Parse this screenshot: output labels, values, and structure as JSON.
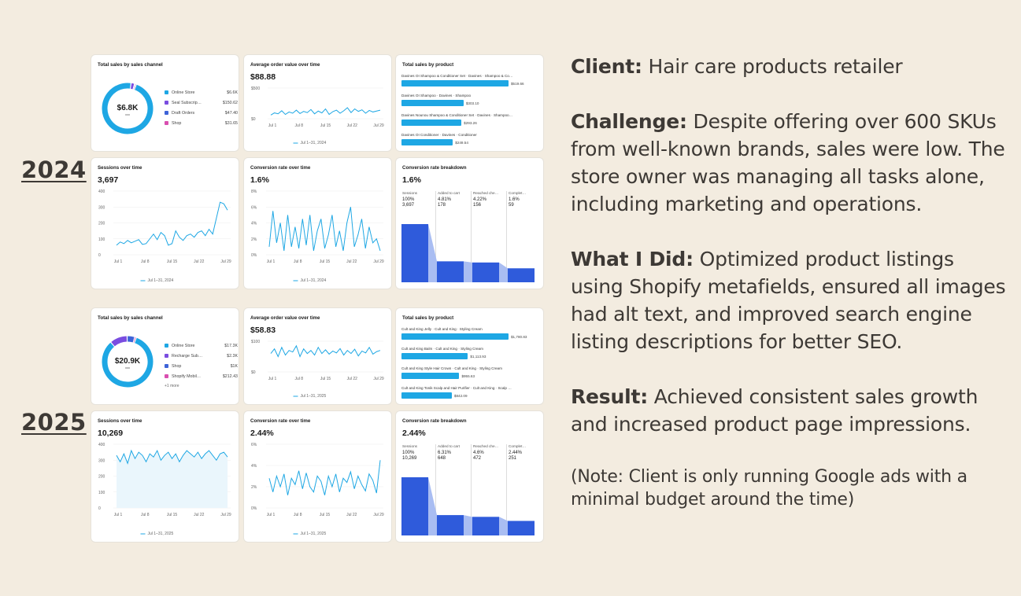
{
  "years": {
    "y1": "2024",
    "y2": "2025"
  },
  "colors": {
    "background": "#f3ece0",
    "accent_blue": "#1ea7e4",
    "funnel_blue": "#2f5bdb",
    "text": "#3d3935"
  },
  "dashboards": {
    "d2024": {
      "sales_channel": {
        "title": "Total sales by sales channel",
        "total": "$6.8K",
        "items": [
          {
            "name": "Online Store",
            "value": "$6.6K",
            "color": "#1ea7e4"
          },
          {
            "name": "Seal Subscrip…",
            "value": "$150.62",
            "color": "#7a4de0"
          },
          {
            "name": "Draft Orders",
            "value": "$47.40",
            "color": "#3e63d8"
          },
          {
            "name": "Shop",
            "value": "$31.65",
            "color": "#d94fb0"
          }
        ],
        "more": ""
      },
      "aov": {
        "title": "Average order value over time",
        "value": "$88.88",
        "y_ticks": [
          "$500",
          "$0"
        ],
        "x_ticks": [
          "Jul 1",
          "Jul 8",
          "Jul 15",
          "Jul 22",
          "Jul 29"
        ],
        "legend": "Jul 1–31, 2024"
      },
      "products": {
        "title": "Total sales by product",
        "items": [
          {
            "name": "Davines OI Shampoo & Conditioner Set · Davines · Shampoo & Co…",
            "value": "$519.66",
            "share": 1.0
          },
          {
            "name": "Davines OI Shampoo · Davines · Shampoo",
            "value": "$303.10",
            "share": 0.58
          },
          {
            "name": "Davines Nounou Shampoo & Conditioner Set · Davines · Shampoo…",
            "value": "$293.26",
            "share": 0.56
          },
          {
            "name": "Davines OI Conditioner · Davines · Conditioner",
            "value": "$249.54",
            "share": 0.48
          }
        ]
      },
      "sessions": {
        "title": "Sessions over time",
        "value": "3,697",
        "y_ticks": [
          "400",
          "300",
          "200",
          "100",
          "0"
        ],
        "x_ticks": [
          "Jul 1",
          "Jul 8",
          "Jul 15",
          "Jul 22",
          "Jul 29"
        ],
        "legend": "Jul 1–31, 2024"
      },
      "conversion": {
        "title": "Conversion rate over time",
        "value": "1.6%",
        "y_ticks": [
          "8%",
          "6%",
          "4%",
          "2%",
          "0%"
        ],
        "x_ticks": [
          "Jul 1",
          "Jul 8",
          "Jul 15",
          "Jul 22",
          "Jul 29"
        ],
        "legend": "Jul 1–31, 2024"
      },
      "funnel": {
        "title": "Conversion rate breakdown",
        "value": "1.6%",
        "stages": [
          {
            "label": "Sessions",
            "pct": "100%",
            "count": "3,697",
            "share": 1.0
          },
          {
            "label": "Added to cart",
            "pct": "4.81%",
            "count": "178",
            "share": 0.36
          },
          {
            "label": "Reached che…",
            "pct": "4.22%",
            "count": "156",
            "share": 0.34
          },
          {
            "label": "Complet…",
            "pct": "1.6%",
            "count": "59",
            "share": 0.24
          }
        ]
      }
    },
    "d2025": {
      "sales_channel": {
        "title": "Total sales by sales channel",
        "total": "$20.9K",
        "items": [
          {
            "name": "Online Store",
            "value": "$17.3K",
            "color": "#1ea7e4"
          },
          {
            "name": "Recharge Sub…",
            "value": "$2.3K",
            "color": "#7a4de0"
          },
          {
            "name": "Shop",
            "value": "$1K",
            "color": "#3e63d8"
          },
          {
            "name": "Shopify Mobil…",
            "value": "$212.43",
            "color": "#d94fb0"
          }
        ],
        "more": "+1 more"
      },
      "aov": {
        "title": "Average order value over time",
        "value": "$58.83",
        "y_ticks": [
          "$100",
          "$0"
        ],
        "x_ticks": [
          "Jul 1",
          "Jul 8",
          "Jul 15",
          "Jul 22",
          "Jul 29"
        ],
        "legend": "Jul 1–31, 2025"
      },
      "products": {
        "title": "Total sales by product",
        "items": [
          {
            "name": "Cult and King Jelly · Cult and King · Styling Cream",
            "value": "$1,780.83",
            "share": 1.0
          },
          {
            "name": "Cult and King Balm · Cult and King · Styling Cream",
            "value": "$1,113.93",
            "share": 0.62
          },
          {
            "name": "Cult and King Style Hair Crown · Cult and King · Styling Cream",
            "value": "$955.63",
            "share": 0.54
          },
          {
            "name": "Cult and King Tonik Scalp and Hair Purifier · Cult and King · Scalp …",
            "value": "$842.09",
            "share": 0.47
          }
        ]
      },
      "sessions": {
        "title": "Sessions over time",
        "value": "10,269",
        "y_ticks": [
          "400",
          "300",
          "200",
          "100",
          "0"
        ],
        "x_ticks": [
          "Jul 1",
          "Jul 8",
          "Jul 15",
          "Jul 22",
          "Jul 29"
        ],
        "legend": "Jul 1–31, 2025"
      },
      "conversion": {
        "title": "Conversion rate over time",
        "value": "2.44%",
        "y_ticks": [
          "6%",
          "4%",
          "2%",
          "0%"
        ],
        "x_ticks": [
          "Jul 1",
          "Jul 8",
          "Jul 15",
          "Jul 22",
          "Jul 29"
        ],
        "legend": "Jul 1–31, 2025"
      },
      "funnel": {
        "title": "Conversion rate breakdown",
        "value": "2.44%",
        "stages": [
          {
            "label": "Sessions",
            "pct": "100%",
            "count": "10,269",
            "share": 1.0
          },
          {
            "label": "Added to cart",
            "pct": "6.31%",
            "count": "648",
            "share": 0.35
          },
          {
            "label": "Reached che…",
            "pct": "4.6%",
            "count": "472",
            "share": 0.32
          },
          {
            "label": "Complet…",
            "pct": "2.44%",
            "count": "251",
            "share": 0.25
          }
        ]
      }
    }
  },
  "chart_data": [
    {
      "type": "line",
      "title": "Sessions over time",
      "year": "2024",
      "x": [
        "Jul 1",
        "Jul 2",
        "Jul 3",
        "Jul 4",
        "Jul 5",
        "Jul 6",
        "Jul 7",
        "Jul 8",
        "Jul 9",
        "Jul 10",
        "Jul 11",
        "Jul 12",
        "Jul 13",
        "Jul 14",
        "Jul 15",
        "Jul 16",
        "Jul 17",
        "Jul 18",
        "Jul 19",
        "Jul 20",
        "Jul 21",
        "Jul 22",
        "Jul 23",
        "Jul 24",
        "Jul 25",
        "Jul 26",
        "Jul 27",
        "Jul 28",
        "Jul 29",
        "Jul 30",
        "Jul 31"
      ],
      "values": [
        60,
        80,
        70,
        90,
        75,
        85,
        95,
        65,
        70,
        100,
        130,
        95,
        140,
        120,
        60,
        70,
        150,
        110,
        90,
        120,
        130,
        110,
        140,
        150,
        120,
        160,
        130,
        230,
        330,
        320,
        280
      ],
      "ylim": [
        0,
        400
      ]
    },
    {
      "type": "line",
      "title": "Conversion rate over time",
      "year": "2024",
      "values": [
        1.0,
        5.5,
        1.5,
        4.0,
        0.5,
        5.0,
        1.0,
        3.5,
        0.8,
        4.5,
        1.2,
        5.0,
        0.5,
        3.0,
        4.5,
        0.8,
        2.5,
        5.0,
        1.0,
        3.0,
        0.5,
        4.0,
        6.0,
        1.0,
        2.5,
        4.5,
        0.8,
        3.5,
        1.5,
        2.0,
        0.5
      ],
      "ylim": [
        0,
        8
      ]
    },
    {
      "type": "line",
      "title": "Average order value over time",
      "year": "2024",
      "values": [
        60,
        95,
        80,
        130,
        70,
        110,
        90,
        140,
        85,
        120,
        100,
        150,
        80,
        125,
        95,
        160,
        70,
        115,
        140,
        90,
        130,
        180,
        100,
        160,
        120,
        145,
        90,
        135,
        110,
        125,
        140
      ],
      "ylim": [
        0,
        500
      ]
    },
    {
      "type": "line",
      "title": "Sessions over time",
      "year": "2025",
      "values": [
        330,
        290,
        340,
        280,
        360,
        310,
        350,
        330,
        290,
        340,
        320,
        360,
        300,
        330,
        350,
        310,
        340,
        290,
        330,
        360,
        340,
        320,
        350,
        310,
        340,
        360,
        330,
        300,
        340,
        350,
        320
      ],
      "ylim": [
        0,
        400
      ]
    },
    {
      "type": "line",
      "title": "Conversion rate over time",
      "year": "2025",
      "values": [
        2.8,
        1.5,
        3.0,
        2.0,
        3.2,
        1.2,
        2.8,
        2.2,
        3.5,
        1.8,
        3.3,
        2.0,
        1.5,
        3.0,
        2.5,
        1.2,
        3.0,
        2.0,
        3.2,
        1.5,
        2.8,
        2.4,
        3.4,
        1.8,
        3.0,
        2.2,
        1.6,
        3.2,
        2.6,
        1.4,
        4.5
      ],
      "ylim": [
        0,
        6
      ]
    },
    {
      "type": "line",
      "title": "Average order value over time",
      "year": "2025",
      "values": [
        60,
        75,
        50,
        80,
        55,
        70,
        65,
        85,
        50,
        75,
        60,
        70,
        55,
        80,
        60,
        72,
        58,
        68,
        62,
        76,
        55,
        70,
        60,
        74,
        52,
        68,
        62,
        80,
        58,
        66,
        70
      ],
      "ylim": [
        0,
        100
      ]
    }
  ],
  "text": {
    "client_label": "Client:",
    "client_body": " Hair care products retailer",
    "challenge_label": "Challenge:",
    "challenge_body": " Despite offering over 600 SKUs from well-known brands, sales were low. The store owner was managing all tasks alone, including marketing and operations.",
    "did_label": "What I Did:",
    "did_body": " Optimized product listings using Shopify metafields, ensured all images had alt text, and improved search engine listing descriptions for better SEO.",
    "result_label": "Result:",
    "result_body": " Achieved consistent sales growth and increased product page impressions.",
    "note": "(Note: Client is only running Google ads with a minimal budget around the time)"
  }
}
